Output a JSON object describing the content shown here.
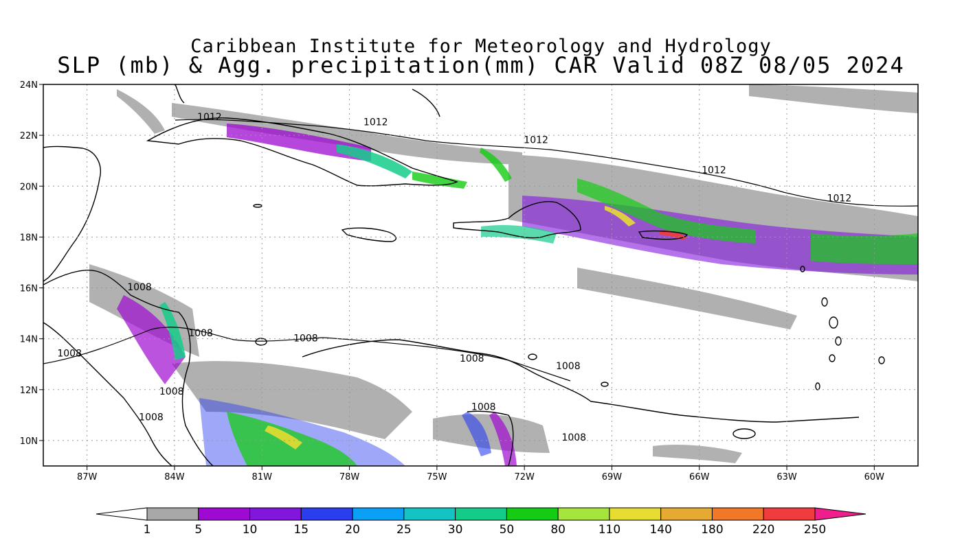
{
  "title": {
    "line1": "Caribbean Institute for Meteorology and Hydrology",
    "line2": "SLP (mb) & Agg. precipitation(mm) CAR Valid 08Z 08/05 2024"
  },
  "map": {
    "region": "Caribbean",
    "lon_range": [
      -88.5,
      -58.5
    ],
    "lat_range": [
      9,
      24
    ],
    "lon_ticks": [
      {
        "value": -87,
        "label": "87W"
      },
      {
        "value": -84,
        "label": "84W"
      },
      {
        "value": -81,
        "label": "81W"
      },
      {
        "value": -78,
        "label": "78W"
      },
      {
        "value": -75,
        "label": "75W"
      },
      {
        "value": -72,
        "label": "72W"
      },
      {
        "value": -69,
        "label": "69W"
      },
      {
        "value": -66,
        "label": "66W"
      },
      {
        "value": -63,
        "label": "63W"
      },
      {
        "value": -60,
        "label": "60W"
      }
    ],
    "lat_ticks": [
      {
        "value": 24,
        "label": "24N"
      },
      {
        "value": 22,
        "label": "22N"
      },
      {
        "value": 20,
        "label": "20N"
      },
      {
        "value": 18,
        "label": "18N"
      },
      {
        "value": 16,
        "label": "16N"
      },
      {
        "value": 14,
        "label": "14N"
      },
      {
        "value": 12,
        "label": "12N"
      },
      {
        "value": 10,
        "label": "10N"
      }
    ],
    "grid": "dotted",
    "isobars": [
      {
        "label": "1012",
        "lon": -82.8,
        "lat": 22.6
      },
      {
        "label": "1012",
        "lon": -77.1,
        "lat": 22.4
      },
      {
        "label": "1012",
        "lon": -71.6,
        "lat": 21.7
      },
      {
        "label": "1012",
        "lon": -65.5,
        "lat": 20.5
      },
      {
        "label": "1012",
        "lon": -61.2,
        "lat": 19.4
      },
      {
        "label": "1008",
        "lon": -85.2,
        "lat": 15.9
      },
      {
        "label": "1008",
        "lon": -83.1,
        "lat": 14.1
      },
      {
        "label": "1008",
        "lon": -79.5,
        "lat": 13.9
      },
      {
        "label": "1008",
        "lon": -87.6,
        "lat": 13.3
      },
      {
        "label": "1008",
        "lon": -73.8,
        "lat": 13.1
      },
      {
        "label": "1008",
        "lon": -70.5,
        "lat": 12.8
      },
      {
        "label": "1008",
        "lon": -84.1,
        "lat": 11.8
      },
      {
        "label": "1008",
        "lon": -84.8,
        "lat": 10.8
      },
      {
        "label": "1008",
        "lon": -73.4,
        "lat": 11.2
      },
      {
        "label": "1008",
        "lon": -70.3,
        "lat": 10.0
      }
    ]
  },
  "colorbar": {
    "labels": [
      "1",
      "5",
      "10",
      "15",
      "20",
      "25",
      "30",
      "50",
      "80",
      "110",
      "140",
      "180",
      "220",
      "250"
    ],
    "colors": [
      "#a8a8a8",
      "#9e0ad2",
      "#8216dc",
      "#2a3ef0",
      "#0aa0f6",
      "#14c4c4",
      "#14cc8a",
      "#14cc14",
      "#a6e63c",
      "#e6dc32",
      "#e6aa32",
      "#f07828",
      "#f03c3c",
      "#f01e8c"
    ]
  }
}
